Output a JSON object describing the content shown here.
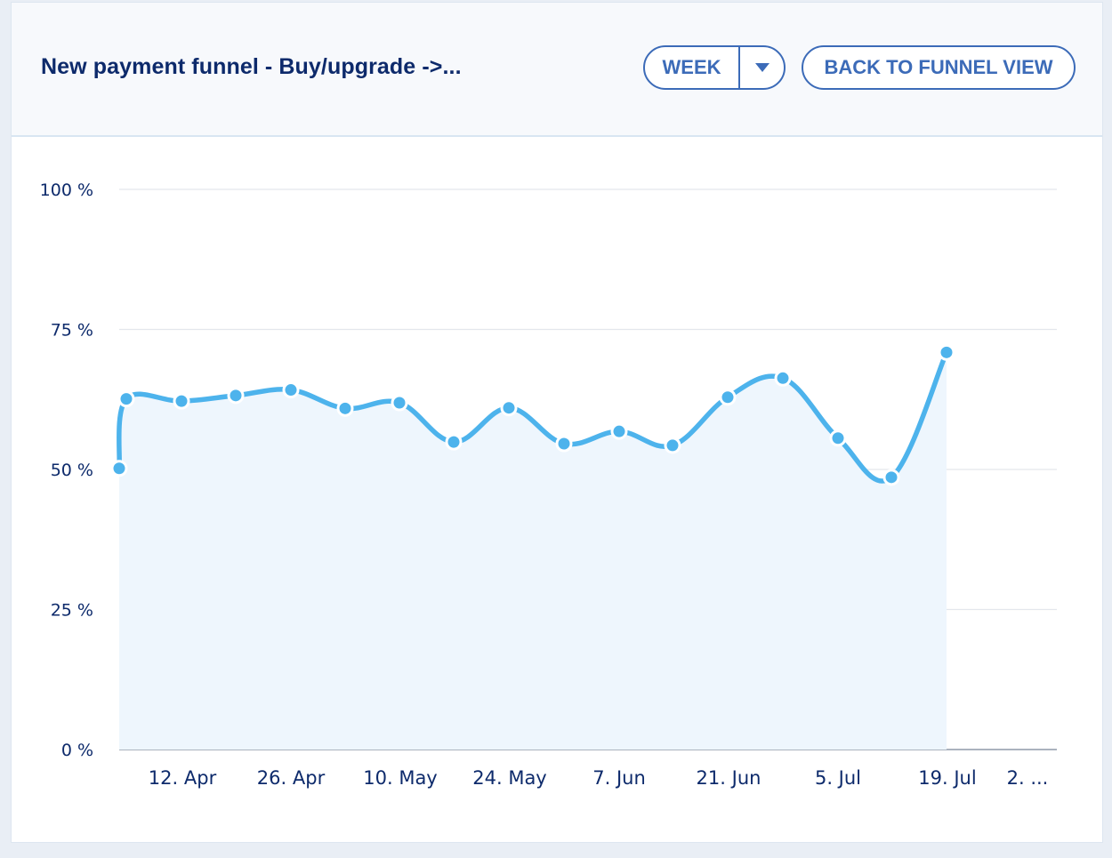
{
  "header": {
    "title": "New payment funnel - Buy/upgrade ->...",
    "period_select": {
      "value": "WEEK"
    },
    "back_button": "BACK TO FUNNEL VIEW"
  },
  "colors": {
    "line": "#4db3ec",
    "fill": "#eef6fd",
    "accent": "#3c6bb8",
    "title": "#0d2a6b",
    "grid": "#e3e7ec"
  },
  "chart_data": {
    "type": "area",
    "title": "",
    "xlabel": "",
    "ylabel": "",
    "ylim": [
      0,
      100
    ],
    "yticks": [
      "100 %",
      "75 %",
      "50 %",
      "25 %",
      "0 %"
    ],
    "xticks": [
      "12. Apr",
      "26. Apr",
      "10. May",
      "24. May",
      "7. Jun",
      "21. Jun",
      "5. Jul",
      "19. Jul",
      "2. ..."
    ],
    "grid": true,
    "series": [
      {
        "x": [
          "4. Apr",
          "5. Apr",
          "12. Apr",
          "19. Apr",
          "26. Apr",
          "3. May",
          "10. May",
          "17. May",
          "24. May",
          "31. May",
          "7. Jun",
          "14. Jun",
          "21. Jun",
          "28. Jun",
          "5. Jul",
          "12. Jul",
          "19. Jul"
        ],
        "values": [
          50.2,
          62.6,
          62.2,
          63.2,
          64.2,
          60.9,
          61.9,
          54.9,
          61.0,
          54.6,
          56.8,
          54.3,
          62.9,
          66.3,
          55.6,
          48.6,
          70.9
        ]
      }
    ]
  }
}
